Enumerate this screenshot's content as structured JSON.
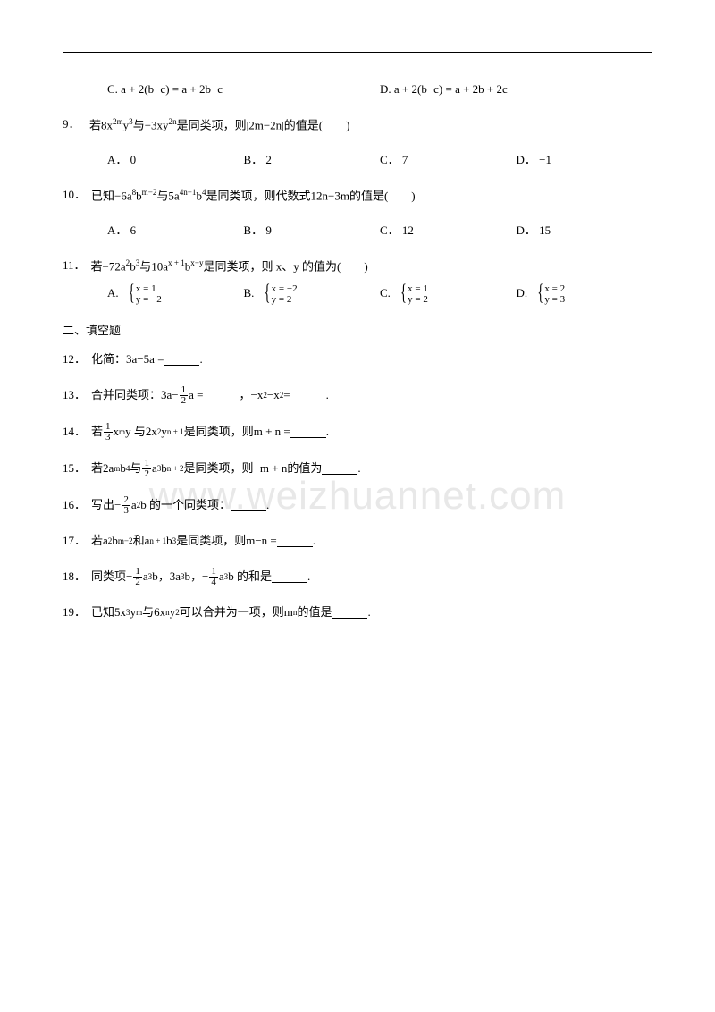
{
  "watermark": "www.weizhuannet.com",
  "q_cd": {
    "c_label": "C.",
    "c_text": "a + 2(b−c) = a + 2b−c",
    "d_label": "D.",
    "d_text": "a + 2(b−c) = a + 2b + 2c"
  },
  "q9": {
    "num": "9．",
    "pre": "若8x",
    "sup1": "2m",
    "mid1": "y",
    "sup2": "3",
    "mid2": "与−3xy",
    "sup3": "2n",
    "mid3": "是同类项，则|2m−2n|的值是(　　)",
    "opts": {
      "A": "A． 0",
      "B": "B． 2",
      "C": "C． 7",
      "D": "D． −1"
    }
  },
  "q10": {
    "num": "10．",
    "pre": "已知−6a",
    "sup1": "8",
    "mid1": "b",
    "sup2": "m−2",
    "mid2": "与5a",
    "sup3": "4n−1",
    "mid3": "b",
    "sup4": "4",
    "mid4": "是同类项，则代数式12n−3m的值是(　　)",
    "opts": {
      "A": "A． 6",
      "B": "B． 9",
      "C": "C． 12",
      "D": "D． 15"
    }
  },
  "q11": {
    "num": "11．",
    "pre": "若−72a",
    "sup1": "2",
    "mid1": "b",
    "sup2": "3",
    "mid2": "与10a",
    "sup3": "x + 1",
    "mid3": "b",
    "sup4": "x−y",
    "mid4": "是同类项，则 x、y 的值为(　　)",
    "opts": {
      "A_label": "A.",
      "A_x": "x = 1",
      "A_y": "y = −2",
      "B_label": "B.",
      "B_x": "x = −2",
      "B_y": "y = 2",
      "C_label": "C.",
      "C_x": "x = 1",
      "C_y": "y = 2",
      "D_label": "D.",
      "D_x": "x = 2",
      "D_y": "y = 3"
    }
  },
  "section2": "二、填空题",
  "q12": {
    "num": "12．",
    "text": "化简：3a−5a = ",
    "end": "."
  },
  "q13": {
    "num": "13．",
    "pre": "合并同类项：",
    "t1a": "3a−",
    "f1n": "1",
    "f1d": "2",
    "t1b": "a = ",
    "t2a": "，−x",
    "t2sup1": "2",
    "t2b": "−x",
    "t2sup2": "2",
    "t2c": " = ",
    "end": "."
  },
  "q14": {
    "num": "14．",
    "pre": "若",
    "f1n": "1",
    "f1d": "3",
    "t1": "x",
    "sup1": "m",
    "t2": "y 与2x",
    "sup2": "2",
    "t3": "y",
    "sup3": "n + 1",
    "t4": " 是同类项，则m + n = ",
    "end": "."
  },
  "q15": {
    "num": "15．",
    "pre": "若2a",
    "sup1": "m",
    "t1": "b",
    "sup2": "4",
    "t2": "与",
    "f1n": "1",
    "f1d": "2",
    "t3": "a",
    "sup3": "3",
    "t4": "b",
    "sup4": "n + 2",
    "t5": " 是同类项，则−m + n的值为",
    "end": "."
  },
  "q16": {
    "num": "16．",
    "pre": "写出",
    "neg": "−",
    "f1n": "2",
    "f1d": "3",
    "t1": "a",
    "sup1": "2",
    "t2": "b 的一个同类项：",
    "end": "."
  },
  "q17": {
    "num": "17．",
    "pre": "若a",
    "sup1": "2",
    "t1": "b",
    "sup2": "m−2",
    "t2": "和a",
    "sup3": "n + 1",
    "t3": "b",
    "sup4": "3",
    "t4": "是同类项，则m−n = ",
    "end": "."
  },
  "q18": {
    "num": "18．",
    "pre": "同类项",
    "neg1": "−",
    "f1n": "1",
    "f1d": "2",
    "t1": "a",
    "s1": "3",
    "t2": "b，3a",
    "s2": "3",
    "t3": "b，",
    "neg2": "−",
    "f2n": "1",
    "f2d": "4",
    "t4": "a",
    "s3": "3",
    "t5": "b 的和是",
    "end": "."
  },
  "q19": {
    "num": "19．",
    "pre": "已知5x",
    "s1": "3",
    "t1": "y",
    "s2": "m",
    "t2": "与6x",
    "s3": "n",
    "t3": "y",
    "s4": "2",
    "t4": "可以合并为一项，则m",
    "s5": "n",
    "t5": "的值是",
    "end": "."
  }
}
